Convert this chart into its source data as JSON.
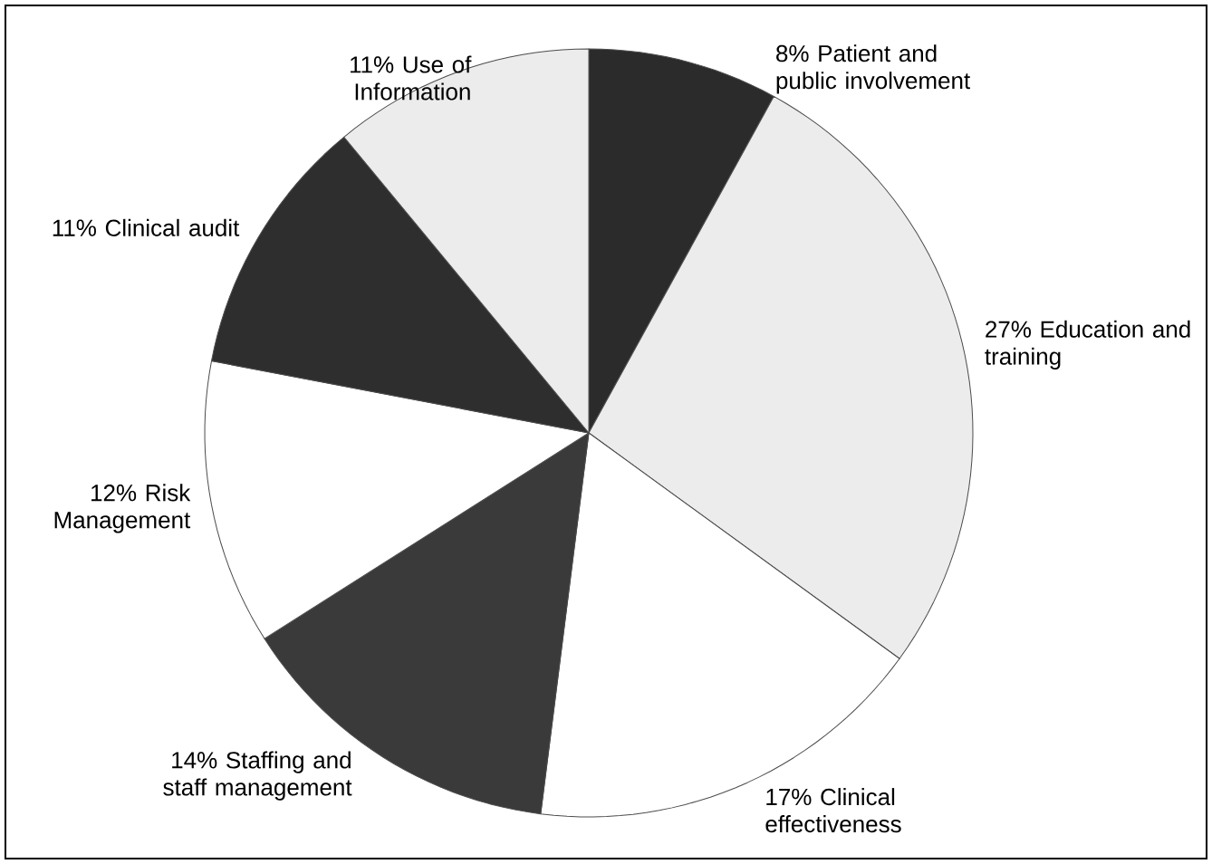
{
  "chart_data": {
    "type": "pie",
    "categories": [
      "Patient and public involvement",
      "Education and training",
      "Clinical effectiveness",
      "Staffing and staff management",
      "Risk Management",
      "Clinical audit",
      "Use of Information"
    ],
    "values": [
      8,
      27,
      17,
      14,
      12,
      11,
      11
    ],
    "colors": [
      "#2b2b2b",
      "#ececec",
      "#ffffff",
      "#3a3a3a",
      "#ffffff",
      "#2e2e2e",
      "#ececec"
    ],
    "value_labels": [
      "8%",
      "27%",
      "17%",
      "14%",
      "12%",
      "11%",
      "11%"
    ]
  }
}
